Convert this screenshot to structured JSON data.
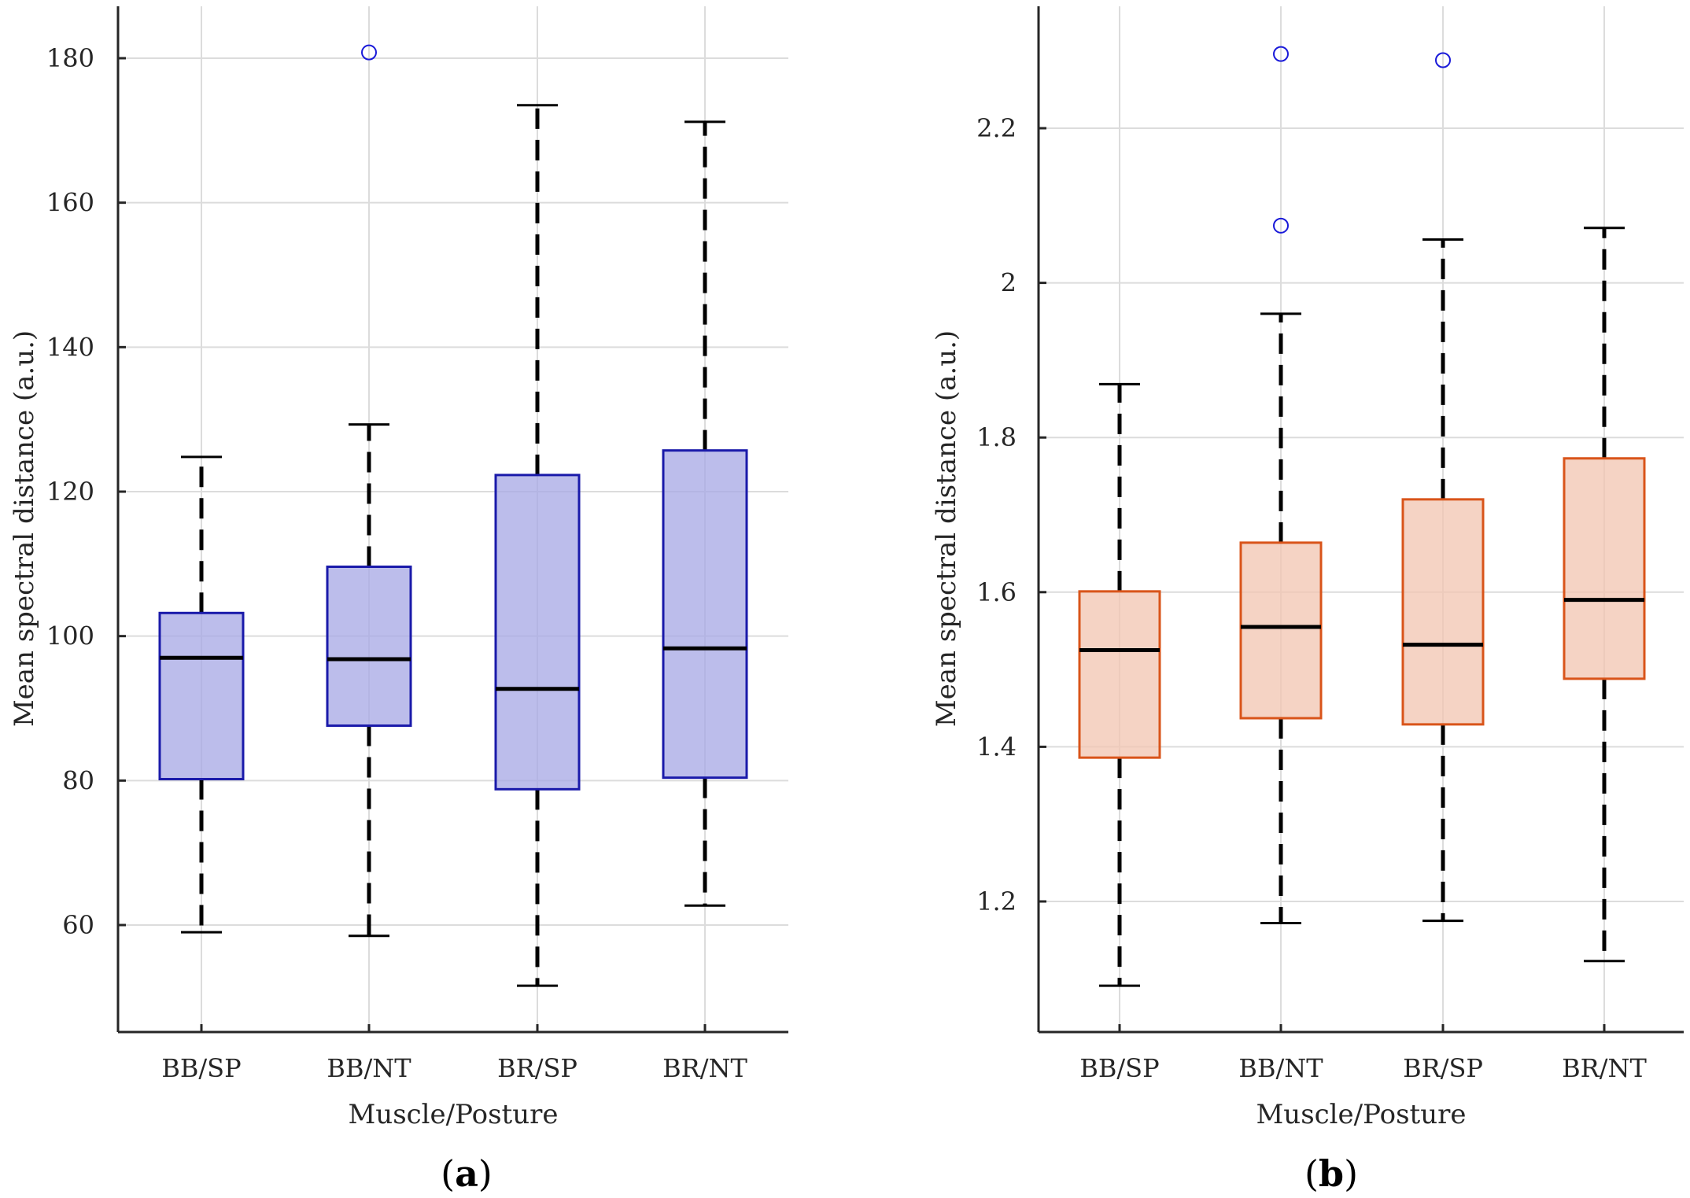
{
  "chart_data": [
    {
      "type": "box",
      "panel_label": "a",
      "xlabel": "Muscle/Posture",
      "ylabel": "Mean spectral distance (a.u.)",
      "ylim": [
        45,
        187
      ],
      "yticks": [
        60,
        80,
        100,
        120,
        140,
        160,
        180
      ],
      "grid": true,
      "box_color": "#1a1aaa",
      "box_fill": "#a9aae6",
      "outlier_color": "#1a1ad9",
      "categories": [
        "BB/SP",
        "BB/NT",
        "BR/SP",
        "BR/NT"
      ],
      "boxes": [
        {
          "whisker_low": 59,
          "q1": 80.2,
          "median": 97,
          "q3": 103.2,
          "whisker_high": 124.8,
          "outliers": []
        },
        {
          "whisker_low": 58.5,
          "q1": 87.6,
          "median": 96.8,
          "q3": 109.6,
          "whisker_high": 129.3,
          "outliers": [
            180.8
          ]
        },
        {
          "whisker_low": 51.6,
          "q1": 78.8,
          "median": 92.7,
          "q3": 122.3,
          "whisker_high": 173.5,
          "outliers": []
        },
        {
          "whisker_low": 62.7,
          "q1": 80.4,
          "median": 98.3,
          "q3": 125.7,
          "whisker_high": 171.2,
          "outliers": []
        }
      ]
    },
    {
      "type": "box",
      "panel_label": "b",
      "xlabel": "Muscle/Posture",
      "ylabel": "Mean spectral distance (a.u.)",
      "ylim": [
        1.03,
        2.35
      ],
      "yticks": [
        "1.2",
        "1.4",
        "1.6",
        "1.8",
        "2",
        "2.2"
      ],
      "grid": true,
      "box_color": "#d9541a",
      "box_fill": "#f2c6b3",
      "outlier_color": "#1a1ad9",
      "categories": [
        "BB/SP",
        "BB/NT",
        "BR/SP",
        "BR/NT"
      ],
      "boxes": [
        {
          "whisker_low": 1.091,
          "q1": 1.386,
          "median": 1.525,
          "q3": 1.601,
          "whisker_high": 1.869,
          "outliers": []
        },
        {
          "whisker_low": 1.172,
          "q1": 1.437,
          "median": 1.555,
          "q3": 1.664,
          "whisker_high": 1.96,
          "outliers": [
            2.074,
            2.296
          ]
        },
        {
          "whisker_low": 1.175,
          "q1": 1.429,
          "median": 1.532,
          "q3": 1.72,
          "whisker_high": 2.056,
          "outliers": [
            2.288
          ]
        },
        {
          "whisker_low": 1.123,
          "q1": 1.488,
          "median": 1.59,
          "q3": 1.773,
          "whisker_high": 2.071,
          "outliers": []
        }
      ]
    }
  ]
}
